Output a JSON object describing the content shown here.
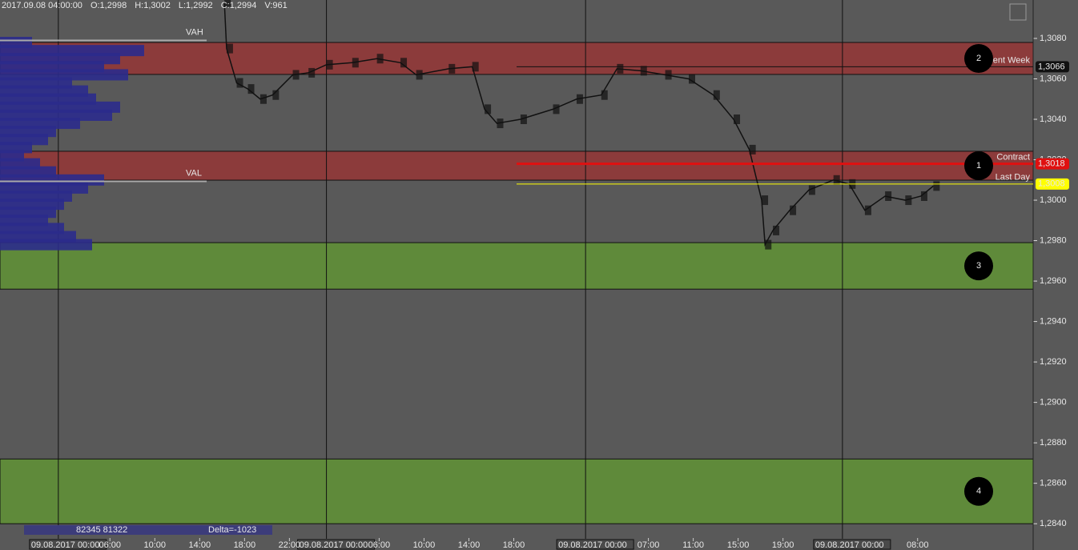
{
  "chart_data": {
    "type": "market-profile",
    "header": [
      "2017.09.08 04:00:00",
      "O:1,2998",
      "H:1,3002",
      "L:1,2992",
      "C:1,2994",
      "V:961"
    ],
    "ylim": [
      1.2827,
      1.3099
    ],
    "yticks": [
      {
        "value": 1.308,
        "label": "1,3080"
      },
      {
        "value": 1.306,
        "label": "1,3060"
      },
      {
        "value": 1.304,
        "label": "1,3040"
      },
      {
        "value": 1.302,
        "label": "1,3020"
      },
      {
        "value": 1.3,
        "label": "1,3000"
      },
      {
        "value": 1.298,
        "label": "1,2980"
      },
      {
        "value": 1.296,
        "label": "1,2960"
      },
      {
        "value": 1.294,
        "label": "1,2940"
      },
      {
        "value": 1.292,
        "label": "1,2920"
      },
      {
        "value": 1.29,
        "label": "1,2900"
      },
      {
        "value": 1.288,
        "label": "1,2880"
      },
      {
        "value": 1.286,
        "label": "1,2860"
      },
      {
        "value": 1.284,
        "label": "1,2840"
      }
    ],
    "xlim": [
      0,
      92.1
    ],
    "xticks": [
      {
        "value": 9.8,
        "label": "06:00"
      },
      {
        "value": 13.8,
        "label": "10:00"
      },
      {
        "value": 17.8,
        "label": "14:00"
      },
      {
        "value": 21.8,
        "label": "18:00"
      },
      {
        "value": 25.8,
        "label": "22:00"
      },
      {
        "value": 33.8,
        "label": "06:00"
      },
      {
        "value": 37.8,
        "label": "10:00"
      },
      {
        "value": 41.8,
        "label": "14:00"
      },
      {
        "value": 45.8,
        "label": "18:00"
      },
      {
        "value": 57.8,
        "label": "07:00"
      },
      {
        "value": 61.8,
        "label": "11:00"
      },
      {
        "value": 65.8,
        "label": "15:00"
      },
      {
        "value": 69.8,
        "label": "19:00"
      },
      {
        "value": 81.8,
        "label": "08:00"
      }
    ],
    "sessions": [
      {
        "value": 5.2,
        "label": "09.08.2017 00:00"
      },
      {
        "value": 29.1,
        "label": "09.08.2017 00:00"
      },
      {
        "value": 52.2,
        "label": "09.08.2017 00:00"
      },
      {
        "value": 75.1,
        "label": "09.08.2017 00:00"
      }
    ],
    "zones": [
      {
        "label": "2",
        "from": 1.30622,
        "to": 1.3078,
        "color": "#8c3b3b"
      },
      {
        "label": "1",
        "from": 1.30099,
        "to": 1.30242,
        "color": "#8c3b3b"
      },
      {
        "label": "3",
        "from": 1.2956,
        "to": 1.2979,
        "color": "#5f8a3a"
      },
      {
        "label": "4",
        "from": 1.284,
        "to": 1.2872,
        "color": "#5f8a3a"
      }
    ],
    "value_area": [
      {
        "name": "VAH",
        "value": 1.3079
      },
      {
        "name": "VAL",
        "value": 1.30093
      }
    ],
    "levels": [
      {
        "name": "Contract",
        "value": 1.3018,
        "label": "1,3018",
        "color": "#e01010"
      },
      {
        "name": "Current Week",
        "value": 1.3066,
        "label": "1,3066",
        "color": "#111111"
      },
      {
        "name": "Last Day",
        "value": 1.3008,
        "label": "1,3008",
        "color": "#ffff00"
      }
    ],
    "price": {
      "x": [
        20,
        20.2,
        21.1,
        22.1,
        23.2,
        24.3,
        26.1,
        27.5,
        29.1,
        31.4,
        33.6,
        35.7,
        37.1,
        40,
        42.1,
        43.2,
        44.3,
        46.4,
        49.3,
        51.4,
        53.6,
        55,
        57.1,
        59.3,
        61.4,
        63.6,
        65.4,
        66.8,
        67.9,
        68.2,
        68.9,
        70.4,
        72.1,
        74.3,
        75.7,
        77.1,
        78.9,
        80.7,
        82.1,
        83.2
      ],
      "values": [
        1.3098,
        1.3075,
        1.3058,
        1.3055,
        1.305,
        1.3052,
        1.3062,
        1.3063,
        1.3067,
        1.3068,
        1.307,
        1.3068,
        1.3062,
        1.3065,
        1.3066,
        1.3045,
        1.3038,
        1.304,
        1.3045,
        1.305,
        1.3052,
        1.3065,
        1.3064,
        1.3062,
        1.306,
        1.3052,
        1.304,
        1.3025,
        1.3,
        1.2978,
        1.2985,
        1.2995,
        1.3005,
        1.301,
        1.3008,
        1.2995,
        1.3002,
        1.3,
        1.3002,
        1.3007
      ],
      "color": "#111111"
    },
    "volume_profile": {
      "prices": [
        1.3078,
        1.3074,
        1.307,
        1.3066,
        1.3062,
        1.3058,
        1.3054,
        1.305,
        1.3046,
        1.3042,
        1.3038,
        1.3034,
        1.303,
        1.3026,
        1.3022,
        1.3018,
        1.3014,
        1.301,
        1.3006,
        1.3002,
        1.2998,
        1.2994,
        1.299,
        1.2986,
        1.2982,
        1.2978
      ],
      "values": [
        40,
        180,
        150,
        130,
        160,
        90,
        110,
        120,
        150,
        140,
        100,
        70,
        60,
        40,
        30,
        50,
        70,
        130,
        110,
        90,
        80,
        70,
        60,
        80,
        95,
        115
      ],
      "color": "#2b2b8c"
    },
    "stats": [
      "82345 81322",
      "Delta=-1023"
    ]
  }
}
